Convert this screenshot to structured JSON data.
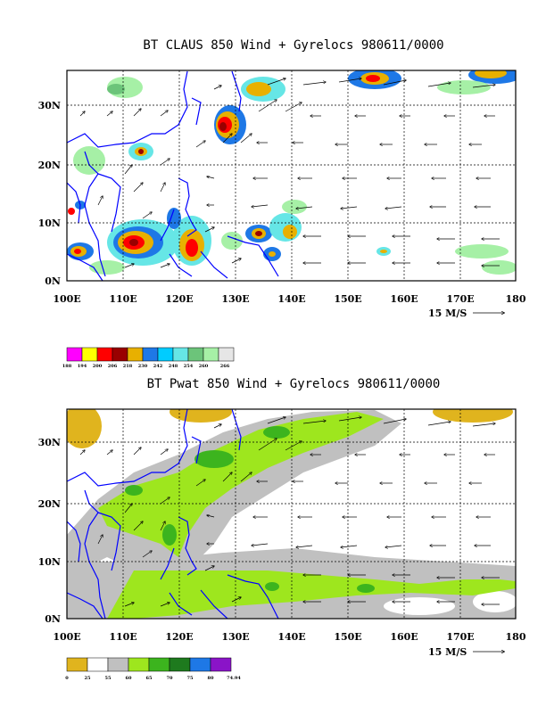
{
  "panels": [
    {
      "title": "BT CLAUS 850 Wind + Gyrelocs 980611/0000",
      "lon_ticks": [
        "100E",
        "110E",
        "120E",
        "130E",
        "140E",
        "150E",
        "160E",
        "170E",
        "180"
      ],
      "lat_ticks": [
        "0N",
        "10N",
        "20N",
        "30N"
      ],
      "scale_label": "15 M/S",
      "legend": {
        "labels": [
          "188",
          "194",
          "200",
          "206",
          "218",
          "230",
          "242",
          "248",
          "254",
          "260",
          "266"
        ],
        "colors": [
          "#ff00ff",
          "#ffff00",
          "#ff0000",
          "#990000",
          "#e8b000",
          "#1e78e6",
          "#00ccff",
          "#66e6e6",
          "#6cc47a",
          "#a6f0a6",
          "#e6e6e6"
        ]
      }
    },
    {
      "title": "BT Pwat 850 Wind + Gyrelocs 980611/0000",
      "lon_ticks": [
        "100E",
        "110E",
        "120E",
        "130E",
        "140E",
        "150E",
        "160E",
        "170E",
        "180"
      ],
      "lat_ticks": [
        "0N",
        "10N",
        "20N",
        "30N"
      ],
      "scale_label": "15 M/S",
      "legend": {
        "labels": [
          "0",
          "25",
          "55",
          "60",
          "65",
          "70",
          "75",
          "80",
          "74.94"
        ],
        "colors": [
          "#e0b41e",
          "#ffffff",
          "#c0c0c0",
          "#9ee61e",
          "#3cb41e",
          "#1e7a1e",
          "#1e78e6",
          "#8a14c8"
        ]
      }
    }
  ],
  "colors": {
    "coast": "#0000ff",
    "frame": "#000000",
    "grid": "#000000"
  }
}
